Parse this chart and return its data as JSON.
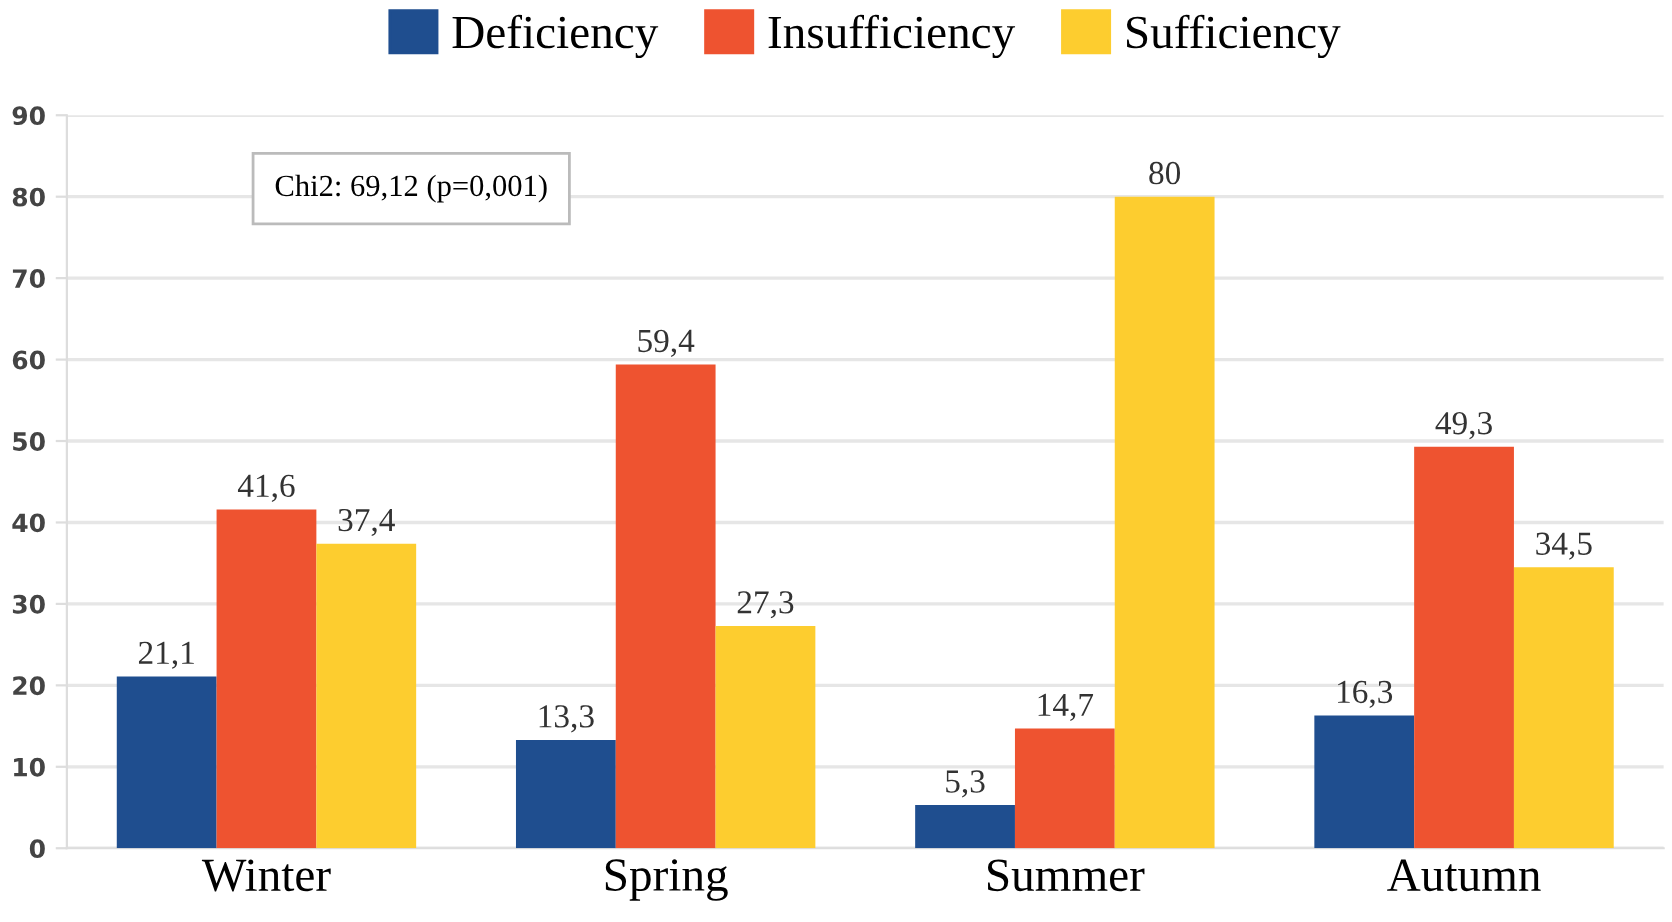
{
  "chart_data": {
    "type": "bar",
    "categories": [
      "Winter",
      "Spring",
      "Summer",
      "Autumn"
    ],
    "series": [
      {
        "name": "Deficiency",
        "color": "#1f4e8f",
        "values": [
          21.1,
          13.3,
          5.3,
          16.3
        ],
        "value_labels": [
          "21,1",
          "13,3",
          "5,3",
          "16,3"
        ]
      },
      {
        "name": "Insufficiency",
        "color": "#ee5330",
        "values": [
          41.6,
          59.4,
          14.7,
          49.3
        ],
        "value_labels": [
          "41,6",
          "59,4",
          "14,7",
          "49,3"
        ]
      },
      {
        "name": "Sufficiency",
        "color": "#fdcd2f",
        "values": [
          37.4,
          27.3,
          80,
          34.5
        ],
        "value_labels": [
          "37,4",
          "27,3",
          "80",
          "34,5"
        ]
      }
    ],
    "ylim": [
      0,
      90
    ],
    "yticks": [
      0,
      10,
      20,
      30,
      40,
      50,
      60,
      70,
      80,
      90
    ],
    "grid": "y",
    "legend": "top",
    "annotations": [
      "Chi2: 69,12 (p=0,001)"
    ]
  }
}
